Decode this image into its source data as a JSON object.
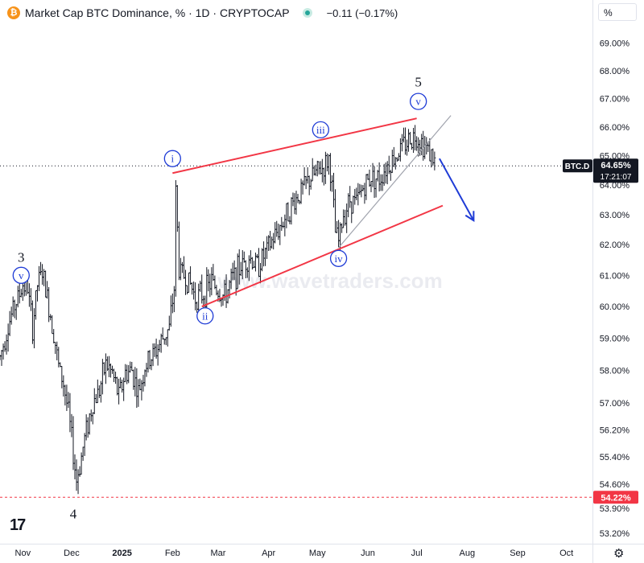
{
  "header": {
    "logo_symbol": "₿",
    "title": "Market Cap BTC Dominance, % · 1D · CRYPTOCAP",
    "change": "−0.11 (−0.17%)",
    "unit_selector": "%"
  },
  "watermark": "www.wavetraders.com",
  "colors": {
    "channel": "#f23645",
    "arrow": "#1e3bd6",
    "wave_label": "#1e3bd6",
    "price_tag": "#131722",
    "level_tag": "#f23645",
    "bars": "#131722"
  },
  "chart_data": {
    "type": "line",
    "title": "Market Cap BTC Dominance, % · 1D · CRYPTOCAP",
    "symbol": "BTC.D",
    "y_unit": "%",
    "y_tick_labels": [
      "69.00%",
      "68.00%",
      "67.00%",
      "66.00%",
      "65.00%",
      "64.00%",
      "63.00%",
      "62.00%",
      "61.00%",
      "60.00%",
      "59.00%",
      "58.00%",
      "57.00%",
      "56.20%",
      "55.40%",
      "54.60%",
      "53.90%",
      "53.20%"
    ],
    "y_scale": "log",
    "x_tick_labels": [
      "Nov",
      "Dec",
      "2025",
      "Feb",
      "Mar",
      "Apr",
      "May",
      "Jun",
      "Jul",
      "Aug",
      "Sep",
      "Oct"
    ],
    "x_range": [
      "2024-10-18",
      "2025-10-17"
    ],
    "y_range": [
      52.9,
      70.0
    ],
    "grid": false,
    "series": [
      {
        "values": [
          {
            "x": "2024-10-18",
            "y": 58.4
          },
          {
            "x": "2024-10-22",
            "y": 59.2
          },
          {
            "x": "2024-10-26",
            "y": 59.9
          },
          {
            "x": "2024-10-30",
            "y": 60.4
          },
          {
            "x": "2024-11-01",
            "y": 60.7
          },
          {
            "x": "2024-11-04",
            "y": 60.6
          },
          {
            "x": "2024-11-07",
            "y": 59.3
          },
          {
            "x": "2024-11-10",
            "y": 60.7
          },
          {
            "x": "2024-11-13",
            "y": 61.1
          },
          {
            "x": "2024-11-17",
            "y": 60.0
          },
          {
            "x": "2024-11-20",
            "y": 59.2
          },
          {
            "x": "2024-11-23",
            "y": 58.1
          },
          {
            "x": "2024-11-26",
            "y": 57.6
          },
          {
            "x": "2024-11-29",
            "y": 56.7
          },
          {
            "x": "2024-12-02",
            "y": 55.5
          },
          {
            "x": "2024-12-04",
            "y": 54.7
          },
          {
            "x": "2024-12-07",
            "y": 55.4
          },
          {
            "x": "2024-12-10",
            "y": 56.2
          },
          {
            "x": "2024-12-14",
            "y": 57.0
          },
          {
            "x": "2024-12-18",
            "y": 57.4
          },
          {
            "x": "2024-12-22",
            "y": 58.2
          },
          {
            "x": "2024-12-26",
            "y": 57.9
          },
          {
            "x": "2024-12-30",
            "y": 57.2
          },
          {
            "x": "2025-01-03",
            "y": 57.9
          },
          {
            "x": "2025-01-07",
            "y": 58.0
          },
          {
            "x": "2025-01-11",
            "y": 57.3
          },
          {
            "x": "2025-01-15",
            "y": 58.1
          },
          {
            "x": "2025-01-19",
            "y": 58.4
          },
          {
            "x": "2025-01-23",
            "y": 58.7
          },
          {
            "x": "2025-01-27",
            "y": 59.1
          },
          {
            "x": "2025-01-30",
            "y": 59.3
          },
          {
            "x": "2025-02-02",
            "y": 60.6
          },
          {
            "x": "2025-02-03",
            "y": 63.8
          },
          {
            "x": "2025-02-05",
            "y": 61.2
          },
          {
            "x": "2025-02-08",
            "y": 61.0
          },
          {
            "x": "2025-02-12",
            "y": 60.7
          },
          {
            "x": "2025-02-15",
            "y": 60.3
          },
          {
            "x": "2025-02-20",
            "y": 60.4
          },
          {
            "x": "2025-02-25",
            "y": 60.8
          },
          {
            "x": "2025-03-01",
            "y": 60.5
          },
          {
            "x": "2025-03-05",
            "y": 60.3
          },
          {
            "x": "2025-03-10",
            "y": 60.9
          },
          {
            "x": "2025-03-15",
            "y": 61.3
          },
          {
            "x": "2025-03-20",
            "y": 61.6
          },
          {
            "x": "2025-03-25",
            "y": 61.3
          },
          {
            "x": "2025-03-30",
            "y": 61.7
          },
          {
            "x": "2025-04-05",
            "y": 62.3
          },
          {
            "x": "2025-04-10",
            "y": 62.8
          },
          {
            "x": "2025-04-15",
            "y": 63.3
          },
          {
            "x": "2025-04-20",
            "y": 63.7
          },
          {
            "x": "2025-04-25",
            "y": 64.1
          },
          {
            "x": "2025-04-30",
            "y": 64.4
          },
          {
            "x": "2025-05-05",
            "y": 64.6
          },
          {
            "x": "2025-05-08",
            "y": 64.9
          },
          {
            "x": "2025-05-10",
            "y": 63.9
          },
          {
            "x": "2025-05-12",
            "y": 62.4
          },
          {
            "x": "2025-05-14",
            "y": 62.1
          },
          {
            "x": "2025-05-17",
            "y": 63.0
          },
          {
            "x": "2025-05-21",
            "y": 63.5
          },
          {
            "x": "2025-05-25",
            "y": 63.4
          },
          {
            "x": "2025-05-29",
            "y": 63.9
          },
          {
            "x": "2025-06-03",
            "y": 64.3
          },
          {
            "x": "2025-06-08",
            "y": 64.2
          },
          {
            "x": "2025-06-12",
            "y": 64.6
          },
          {
            "x": "2025-06-17",
            "y": 64.9
          },
          {
            "x": "2025-06-22",
            "y": 65.3
          },
          {
            "x": "2025-06-27",
            "y": 65.6
          },
          {
            "x": "2025-07-01",
            "y": 65.7
          },
          {
            "x": "2025-07-05",
            "y": 65.4
          },
          {
            "x": "2025-07-08",
            "y": 65.2
          },
          {
            "x": "2025-07-11",
            "y": 64.9
          },
          {
            "x": "2025-07-13",
            "y": 64.65
          }
        ]
      }
    ],
    "current_value": {
      "label": "BTC.D",
      "value": "64.65%",
      "countdown": "17:21:07",
      "y": 64.65
    },
    "level_line": {
      "value": "54.22%",
      "y": 54.22
    },
    "trendlines": [
      {
        "from": {
          "x": "2025-02-01",
          "y": 64.4
        },
        "to": {
          "x": "2025-07-01",
          "y": 66.3
        }
      },
      {
        "from": {
          "x": "2025-02-19",
          "y": 60.0
        },
        "to": {
          "x": "2025-07-17",
          "y": 63.3
        }
      },
      {
        "from": {
          "x": "2025-05-14",
          "y": 61.9
        },
        "to": {
          "x": "2025-07-22",
          "y": 66.4
        }
      }
    ],
    "forecast_arrow": {
      "from": {
        "x": "2025-07-15",
        "y": 64.9
      },
      "to": {
        "x": "2025-08-05",
        "y": 62.8
      }
    },
    "annotations": [
      {
        "text": "3",
        "x": "2024-10-31",
        "y": 61.6,
        "style": "plain"
      },
      {
        "text": "v",
        "x": "2024-10-31",
        "y": 61.0,
        "style": "circle"
      },
      {
        "text": "4",
        "x": "2024-12-02",
        "y": 53.75,
        "style": "plain"
      },
      {
        "text": "i",
        "x": "2025-02-01",
        "y": 64.9,
        "style": "circle"
      },
      {
        "text": "ii",
        "x": "2025-02-21",
        "y": 59.7,
        "style": "circle"
      },
      {
        "text": "iii",
        "x": "2025-05-03",
        "y": 65.9,
        "style": "circle"
      },
      {
        "text": "iv",
        "x": "2025-05-14",
        "y": 61.55,
        "style": "circle"
      },
      {
        "text": "5",
        "x": "2025-07-02",
        "y": 67.6,
        "style": "plain"
      },
      {
        "text": "v",
        "x": "2025-07-02",
        "y": 66.9,
        "style": "circle"
      }
    ]
  }
}
